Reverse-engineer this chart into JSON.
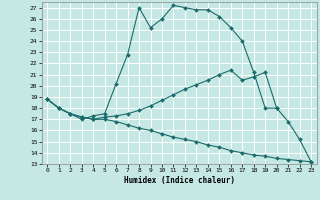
{
  "xlabel": "Humidex (Indice chaleur)",
  "xlim": [
    -0.5,
    23.5
  ],
  "ylim": [
    13,
    27.5
  ],
  "xticks": [
    0,
    1,
    2,
    3,
    4,
    5,
    6,
    7,
    8,
    9,
    10,
    11,
    12,
    13,
    14,
    15,
    16,
    17,
    18,
    19,
    20,
    21,
    22,
    23
  ],
  "yticks": [
    13,
    14,
    15,
    16,
    17,
    18,
    19,
    20,
    21,
    22,
    23,
    24,
    25,
    26,
    27
  ],
  "background_color": "#c6e8e4",
  "grid_color": "#ffffff",
  "line_color": "#1a6b6b",
  "lines": [
    {
      "x": [
        0,
        1,
        2,
        3,
        4,
        5,
        6,
        7,
        8,
        9,
        10,
        11,
        12,
        13,
        14,
        15,
        16,
        17,
        18,
        19,
        20
      ],
      "y": [
        18.8,
        18.0,
        17.5,
        17.0,
        17.3,
        17.5,
        20.2,
        22.8,
        27.0,
        25.2,
        26.0,
        27.2,
        27.0,
        26.8,
        26.8,
        26.2,
        25.2,
        24.0,
        21.2,
        18.0,
        18.0
      ]
    },
    {
      "x": [
        0,
        1,
        2,
        3,
        4,
        5,
        6,
        7,
        8,
        9,
        10,
        11,
        12,
        13,
        14,
        15,
        16,
        17,
        18,
        19,
        20,
        21,
        22,
        23
      ],
      "y": [
        18.8,
        18.0,
        17.5,
        17.2,
        17.0,
        17.2,
        17.3,
        17.5,
        17.8,
        18.2,
        18.7,
        19.2,
        19.7,
        20.1,
        20.5,
        21.0,
        21.4,
        20.5,
        20.8,
        21.2,
        18.0,
        16.8,
        15.2,
        13.2
      ]
    },
    {
      "x": [
        0,
        1,
        2,
        3,
        4,
        5,
        6,
        7,
        8,
        9,
        10,
        11,
        12,
        13,
        14,
        15,
        16,
        17,
        18,
        19,
        20,
        21,
        22,
        23
      ],
      "y": [
        18.8,
        18.0,
        17.5,
        17.2,
        17.0,
        17.0,
        16.8,
        16.5,
        16.2,
        16.0,
        15.7,
        15.4,
        15.2,
        15.0,
        14.7,
        14.5,
        14.2,
        14.0,
        13.8,
        13.7,
        13.5,
        13.4,
        13.3,
        13.2
      ]
    }
  ]
}
